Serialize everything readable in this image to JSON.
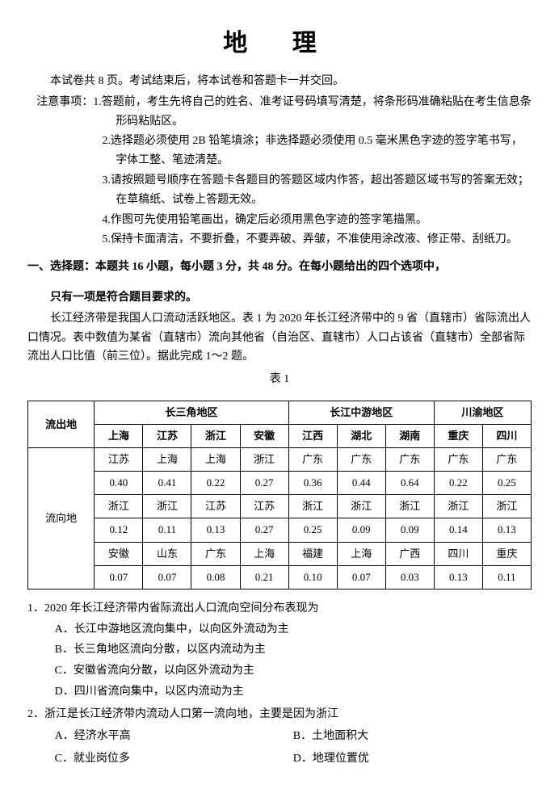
{
  "title": "地 理",
  "intro": "本试卷共 8 页。考试结束后，将本试卷和答题卡一并交回。",
  "notice_label": "注意事项：",
  "notices": [
    "1.答题前，考生先将自己的姓名、准考证号码填写清楚，将条形码准确粘贴在考生信息条形码粘贴区。",
    "2.选择题必须使用 2B 铅笔填涂；非选择题必须使用 0.5 毫米黑色字迹的签字笔书写，字体工整、笔迹清楚。",
    "3.请按照题号顺序在答题卡各题目的答题区域内作答，超出答题区域书写的答案无效；在草稿纸、试卷上答题无效。",
    "4.作图可先使用铅笔画出，确定后必须用黑色字迹的签字笔描黑。",
    "5.保持卡面清洁，不要折叠，不要弄破、弄皱，不准使用涂改液、修正带、刮纸刀。"
  ],
  "section1": {
    "heading": "一、选择题：本题共 16 小题，每小题 3 分，共 48 分。在每小题给出的四个选项中，",
    "heading2": "只有一项是符合题目要求的。",
    "passage1": "长江经济带是我国人口流动活跃地区。表 1 为 2020 年长江经济带中的 9 省（直辖市）省际流出人口情况。表中数值为某省（直辖市）流向其他省（自治区、直辖市）人口占该省（直辖市）全部省际流出人口比值（前三位）。据此完成 1～2 题。"
  },
  "table": {
    "caption": "表 1",
    "row_header": "流出地",
    "dest_header": "流向地",
    "groups": [
      {
        "name": "长三角地区",
        "provinces": [
          "上海",
          "江苏",
          "浙江",
          "安徽"
        ]
      },
      {
        "name": "长江中游地区",
        "provinces": [
          "江西",
          "湖北",
          "湖南"
        ]
      },
      {
        "name": "川渝地区",
        "provinces": [
          "重庆",
          "四川"
        ]
      }
    ],
    "dest_rows": [
      {
        "names": [
          "江苏",
          "上海",
          "上海",
          "浙江",
          "广东",
          "广东",
          "广东",
          "广东",
          "广东"
        ],
        "vals": [
          "0.40",
          "0.41",
          "0.22",
          "0.27",
          "0.36",
          "0.44",
          "0.64",
          "0.22",
          "0.25"
        ]
      },
      {
        "names": [
          "浙江",
          "浙江",
          "江苏",
          "江苏",
          "浙江",
          "浙江",
          "浙江",
          "浙江",
          "浙江"
        ],
        "vals": [
          "0.12",
          "0.11",
          "0.13",
          "0.27",
          "0.25",
          "0.09",
          "0.09",
          "0.14",
          "0.13"
        ]
      },
      {
        "names": [
          "安徽",
          "山东",
          "广东",
          "上海",
          "福建",
          "上海",
          "广西",
          "四川",
          "重庆"
        ],
        "vals": [
          "0.07",
          "0.07",
          "0.08",
          "0.21",
          "0.10",
          "0.07",
          "0.03",
          "0.13",
          "0.11"
        ]
      }
    ],
    "style": {
      "border_color": "#000000",
      "font_size": 13,
      "cell_padding": 3
    }
  },
  "q1": {
    "stem": "1．2020 年长江经济带内省际流出人口流向空间分布表现为",
    "A": "A．长江中游地区流向集中，以向区外流动为主",
    "B": "B．长三角地区流向分散，以区内流动为主",
    "C": "C．安徽省流向分散，以向区外流动为主",
    "D": "D．四川省流向集中，以区内流动为主"
  },
  "q2": {
    "stem": "2．浙江是长江经济带内流动人口第一流向地，主要是因为浙江",
    "A": "A．经济水平高",
    "B": "B．土地面积大",
    "C": "C．就业岗位多",
    "D": "D．地理位置优"
  }
}
